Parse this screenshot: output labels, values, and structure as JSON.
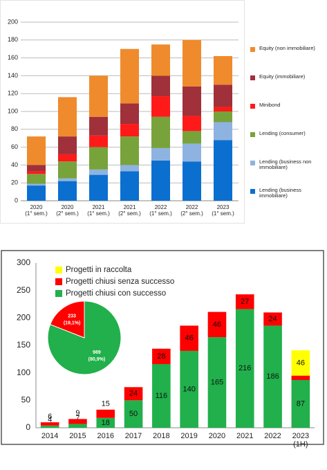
{
  "chart_data": [
    {
      "type": "stacked_bar",
      "categories": [
        "2020\n(1° sem.)",
        "2020\n(2° sem.)",
        "2021\n(1° sem.)",
        "2021\n(2° sem.)",
        "2022\n(1° sem.)",
        "2022\n(2° sem.)",
        "2023\n(1° sem.)"
      ],
      "series": [
        {
          "name": "Lending (business immobiliare)",
          "color": "#0b6fd0",
          "values": [
            17,
            22,
            29,
            33,
            45,
            44,
            68
          ]
        },
        {
          "name": "Lending (business non immobiliare)",
          "color": "#8fb3e0",
          "values": [
            2,
            3,
            6,
            7,
            14,
            20,
            20
          ]
        },
        {
          "name": "Lending (consumer)",
          "color": "#77a33a",
          "values": [
            11,
            19,
            25,
            32,
            35,
            14,
            12
          ]
        },
        {
          "name": "Minibond",
          "color": "#ff1a1a",
          "values": [
            3,
            8,
            13,
            14,
            23,
            17,
            5
          ]
        },
        {
          "name": "Equity (immobiliare)",
          "color": "#a0303a",
          "values": [
            7,
            20,
            21,
            23,
            23,
            33,
            25
          ]
        },
        {
          "name": "Equity (non immobiliare)",
          "color": "#ef8b2c",
          "values": [
            32,
            44,
            46,
            61,
            35,
            52,
            32
          ]
        }
      ],
      "ylim": [
        0,
        200
      ],
      "yticks": [
        0,
        20,
        40,
        60,
        80,
        100,
        120,
        140,
        160,
        180,
        200
      ],
      "grid": true,
      "legend": "right"
    },
    {
      "type": "stacked_bar",
      "categories": [
        "2014",
        "2015",
        "2016",
        "2017",
        "2018",
        "2019",
        "2020",
        "2021",
        "2022",
        "2023\n(1H)"
      ],
      "series": [
        {
          "name": "Progetti chiusi con successo",
          "color": "#21b04b",
          "values": [
            4,
            7,
            18,
            50,
            116,
            140,
            165,
            216,
            186,
            87
          ]
        },
        {
          "name": "Progetti chiusi senza successo",
          "color": "#ff0000",
          "values": [
            6,
            9,
            15,
            24,
            28,
            46,
            46,
            27,
            24,
            8
          ]
        },
        {
          "name": "Progetti in raccolta",
          "color": "#ffff00",
          "values": [
            null,
            null,
            null,
            null,
            null,
            null,
            null,
            null,
            null,
            46
          ]
        }
      ],
      "ylim": [
        0,
        300
      ],
      "yticks": [
        0,
        50,
        100,
        150,
        200,
        250,
        300
      ],
      "grid": false,
      "legend": "top-left"
    },
    {
      "type": "pie",
      "values": [
        989,
        233
      ],
      "labels": [
        "(80,9%)",
        "(19,1%)"
      ],
      "colors": [
        "#21b04b",
        "#ff0000"
      ]
    }
  ]
}
